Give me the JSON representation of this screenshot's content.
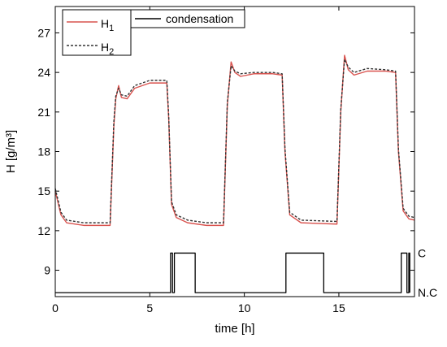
{
  "chart_data": {
    "type": "line",
    "xlabel": "time [h]",
    "ylabel": "H [g/m³]",
    "xlim": [
      0,
      19
    ],
    "ylim": [
      7,
      29
    ],
    "x_ticks": [
      0,
      5,
      10,
      15
    ],
    "y_ticks": [
      9,
      12,
      15,
      18,
      21,
      24,
      27
    ],
    "legend": {
      "placement": "top-left",
      "entries": [
        {
          "label": "H",
          "sub": "1",
          "style": "solid",
          "color": "#d9534f"
        },
        {
          "label": "H",
          "sub": "2",
          "style": "dashed",
          "color": "#333333"
        },
        {
          "label": "condensation",
          "sub": "",
          "style": "solid",
          "color": "#000000"
        }
      ]
    },
    "side_labels": {
      "high": "C",
      "low": "N.C"
    },
    "series": [
      {
        "name": "H1",
        "style": "solid",
        "color": "#d9534f",
        "points": [
          [
            0,
            15.0
          ],
          [
            0.3,
            13.2
          ],
          [
            0.6,
            12.6
          ],
          [
            1.5,
            12.4
          ],
          [
            2.9,
            12.4
          ],
          [
            3.1,
            20.0
          ],
          [
            3.2,
            22.0
          ],
          [
            3.35,
            23.0
          ],
          [
            3.5,
            22.1
          ],
          [
            3.8,
            22.0
          ],
          [
            4.2,
            22.8
          ],
          [
            5.0,
            23.2
          ],
          [
            5.9,
            23.2
          ],
          [
            6.0,
            20.5
          ],
          [
            6.15,
            14.0
          ],
          [
            6.4,
            13.0
          ],
          [
            7.0,
            12.6
          ],
          [
            8.0,
            12.4
          ],
          [
            8.9,
            12.4
          ],
          [
            9.1,
            21.5
          ],
          [
            9.3,
            24.8
          ],
          [
            9.5,
            24.0
          ],
          [
            9.8,
            23.7
          ],
          [
            10.5,
            23.9
          ],
          [
            11.5,
            23.9
          ],
          [
            12.0,
            23.8
          ],
          [
            12.15,
            18.0
          ],
          [
            12.4,
            13.2
          ],
          [
            13.0,
            12.6
          ],
          [
            14.9,
            12.5
          ],
          [
            15.1,
            21.0
          ],
          [
            15.3,
            25.3
          ],
          [
            15.5,
            24.2
          ],
          [
            15.8,
            23.8
          ],
          [
            16.5,
            24.1
          ],
          [
            17.5,
            24.1
          ],
          [
            18.0,
            24.0
          ],
          [
            18.15,
            18.0
          ],
          [
            18.4,
            13.5
          ],
          [
            18.7,
            12.9
          ],
          [
            19.0,
            12.8
          ]
        ]
      },
      {
        "name": "H2",
        "style": "dashed",
        "color": "#333333",
        "points": [
          [
            0,
            15.2
          ],
          [
            0.3,
            13.4
          ],
          [
            0.6,
            12.8
          ],
          [
            1.5,
            12.6
          ],
          [
            2.9,
            12.6
          ],
          [
            3.1,
            20.3
          ],
          [
            3.2,
            22.2
          ],
          [
            3.35,
            22.8
          ],
          [
            3.5,
            22.3
          ],
          [
            3.8,
            22.2
          ],
          [
            4.2,
            23.0
          ],
          [
            5.0,
            23.4
          ],
          [
            5.9,
            23.4
          ],
          [
            6.0,
            20.7
          ],
          [
            6.15,
            14.2
          ],
          [
            6.4,
            13.2
          ],
          [
            7.0,
            12.8
          ],
          [
            8.0,
            12.6
          ],
          [
            8.9,
            12.6
          ],
          [
            9.1,
            21.7
          ],
          [
            9.3,
            24.5
          ],
          [
            9.5,
            24.1
          ],
          [
            9.8,
            23.9
          ],
          [
            10.5,
            24.0
          ],
          [
            11.5,
            24.0
          ],
          [
            12.0,
            23.9
          ],
          [
            12.15,
            18.2
          ],
          [
            12.4,
            13.4
          ],
          [
            13.0,
            12.8
          ],
          [
            14.9,
            12.7
          ],
          [
            15.1,
            21.2
          ],
          [
            15.3,
            25.0
          ],
          [
            15.5,
            24.4
          ],
          [
            15.8,
            24.0
          ],
          [
            16.5,
            24.3
          ],
          [
            17.5,
            24.2
          ],
          [
            18.0,
            24.1
          ],
          [
            18.15,
            18.2
          ],
          [
            18.4,
            13.7
          ],
          [
            18.7,
            13.1
          ],
          [
            19.0,
            13.0
          ]
        ]
      },
      {
        "name": "condensation",
        "style": "solid",
        "color": "#000000",
        "points": [
          [
            0,
            7.3
          ],
          [
            6.1,
            7.3
          ],
          [
            6.1,
            10.3
          ],
          [
            6.2,
            10.3
          ],
          [
            6.2,
            7.3
          ],
          [
            6.3,
            7.3
          ],
          [
            6.3,
            10.3
          ],
          [
            7.4,
            10.3
          ],
          [
            7.4,
            7.3
          ],
          [
            12.2,
            7.3
          ],
          [
            12.2,
            10.3
          ],
          [
            14.2,
            10.3
          ],
          [
            14.2,
            7.3
          ],
          [
            18.3,
            7.3
          ],
          [
            18.3,
            10.3
          ],
          [
            18.6,
            10.3
          ],
          [
            18.6,
            7.3
          ],
          [
            18.7,
            7.3
          ],
          [
            18.7,
            10.3
          ],
          [
            18.75,
            10.3
          ],
          [
            18.75,
            7.3
          ]
        ]
      }
    ]
  }
}
